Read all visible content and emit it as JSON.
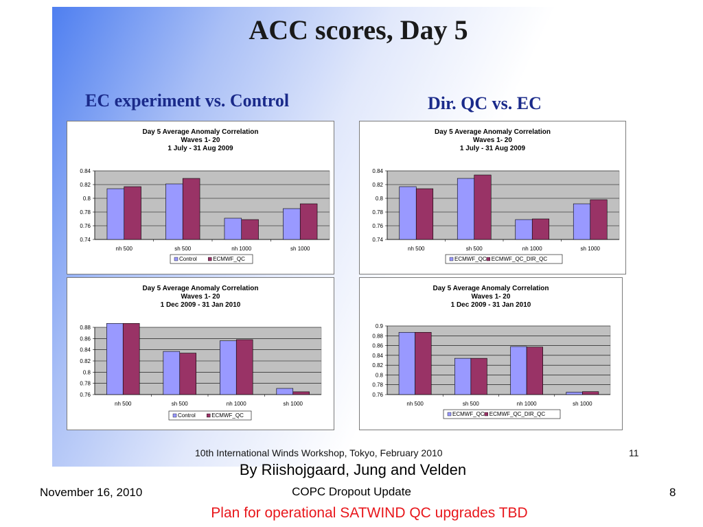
{
  "slide": {
    "title": "ACC scores, Day 5",
    "left_subtitle": "EC experiment vs. Control",
    "right_subtitle": "Dir. QC vs. EC",
    "footer_inner": "10th International Winds Workshop, Tokyo, February 2010",
    "page_inner": "11",
    "byline": "By Riishojgaard, Jung and Velden",
    "date": "November 16, 2010",
    "center_footer": "COPC Dropout Update",
    "slide_number": "8",
    "plan": "Plan for operational SATWIND QC upgrades TBD"
  },
  "colors": {
    "series_a": "#9999ff",
    "series_b": "#993366",
    "plot_bg": "#c0c0c0",
    "plan_text": "#e8161b"
  },
  "chart_data": [
    {
      "type": "bar",
      "title_lines": [
        "Day 5 Average Anomaly Correlation",
        "Waves 1- 20",
        "1 July - 31 Aug 2009"
      ],
      "categories": [
        "nh 500",
        "sh 500",
        "nh 1000",
        "sh 1000"
      ],
      "series": [
        {
          "name": "Control",
          "values": [
            0.814,
            0.821,
            0.771,
            0.785
          ]
        },
        {
          "name": "ECMWF_QC",
          "values": [
            0.817,
            0.829,
            0.769,
            0.792
          ]
        }
      ],
      "ylim": [
        0.74,
        0.84
      ],
      "yticks": [
        "0.84",
        "0.82",
        "0.8",
        "0.78",
        "0.76",
        "0.74"
      ],
      "legend": "bottom",
      "grid": true
    },
    {
      "type": "bar",
      "title_lines": [
        "Day 5 Average Anomaly Correlation",
        "Waves 1- 20",
        "1 July - 31 Aug 2009"
      ],
      "categories": [
        "nh 500",
        "sh 500",
        "nh 1000",
        "sh 1000"
      ],
      "series": [
        {
          "name": "ECMWF_QC",
          "values": [
            0.817,
            0.829,
            0.769,
            0.792
          ]
        },
        {
          "name": "ECMWF_QC_DIR_QC",
          "values": [
            0.814,
            0.834,
            0.77,
            0.798
          ]
        }
      ],
      "ylim": [
        0.74,
        0.84
      ],
      "yticks": [
        "0.84",
        "0.82",
        "0.8",
        "0.78",
        "0.76",
        "0.74"
      ],
      "legend": "bottom",
      "grid": true
    },
    {
      "type": "bar",
      "title_lines": [
        "Day 5 Average Anomaly Correlation",
        "Waves 1- 20",
        "1 Dec 2009 - 31 Jan 2010"
      ],
      "categories": [
        "nh 500",
        "sh 500",
        "nh 1000",
        "sh 1000"
      ],
      "series": [
        {
          "name": "Control",
          "values": [
            0.887,
            0.837,
            0.856,
            0.771
          ]
        },
        {
          "name": "ECMWF_QC",
          "values": [
            0.887,
            0.834,
            0.858,
            0.765
          ]
        }
      ],
      "ylim": [
        0.76,
        0.88
      ],
      "yticks": [
        "0.88",
        "0.86",
        "0.84",
        "0.82",
        "0.8",
        "0.78",
        "0.76"
      ],
      "legend": "bottom",
      "grid": true
    },
    {
      "type": "bar",
      "title_lines": [
        "Day 5 Average Anomaly Correlation",
        "Waves 1- 20",
        "1 Dec 2009 - 31 Jan 2010"
      ],
      "categories": [
        "nh 500",
        "sh 500",
        "nh 1000",
        "sh 1000"
      ],
      "series": [
        {
          "name": "ECMWF_QC",
          "values": [
            0.887,
            0.834,
            0.858,
            0.765
          ]
        },
        {
          "name": "ECMWF_QC_DIR_QC",
          "values": [
            0.887,
            0.834,
            0.857,
            0.766
          ]
        }
      ],
      "ylim": [
        0.76,
        0.9
      ],
      "yticks": [
        "0.9",
        "0.88",
        "0.86",
        "0.84",
        "0.82",
        "0.8",
        "0.78",
        "0.76"
      ],
      "legend": "bottom",
      "grid": true
    }
  ]
}
